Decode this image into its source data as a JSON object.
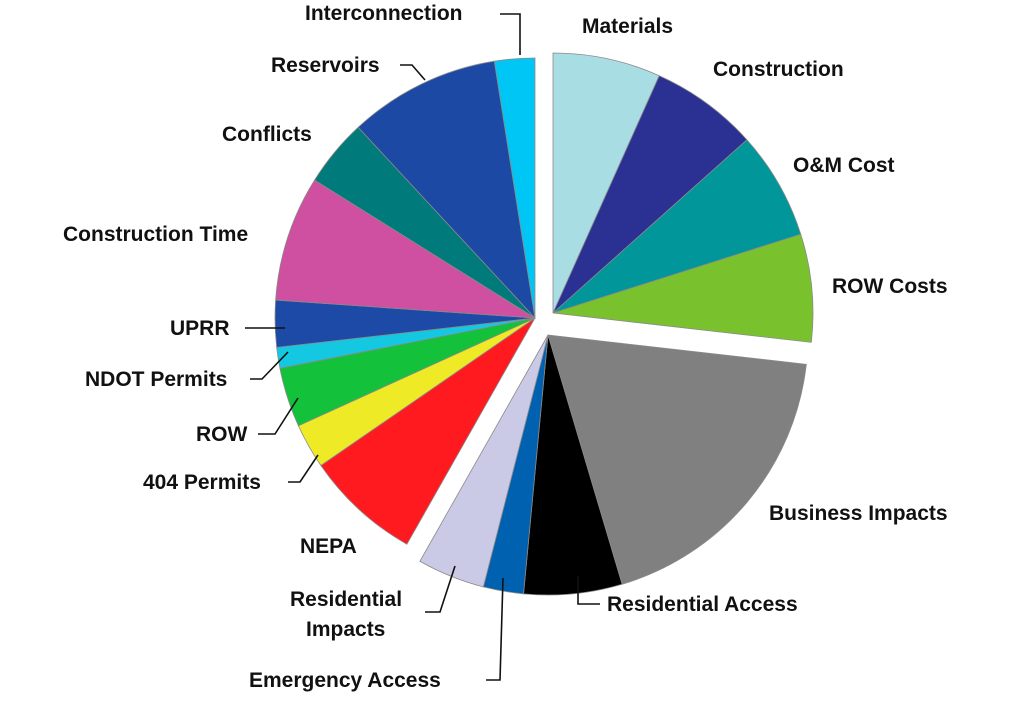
{
  "chart_data": {
    "type": "pie",
    "title": "",
    "unit": "percent (estimated)",
    "exploded_groups": [
      [
        "Materials",
        "Construction",
        "O&M Cost",
        "ROW Costs"
      ],
      [
        "Business Impacts",
        "Residential Access",
        "Emergency Access",
        "Residential Impacts"
      ],
      [
        "NEPA",
        "404 Permits",
        "ROW",
        "NDOT Permits",
        "UPRR",
        "Construction Time",
        "Conflicts",
        "Reservoirs",
        "Interconnection"
      ]
    ],
    "slices": [
      {
        "label": "Materials",
        "value": 6.7,
        "color": "#a8dde3",
        "group": 0
      },
      {
        "label": "Construction",
        "value": 6.7,
        "color": "#2b3192",
        "group": 0
      },
      {
        "label": "O&M Cost",
        "value": 6.7,
        "color": "#00969a",
        "group": 0
      },
      {
        "label": "ROW Costs",
        "value": 6.7,
        "color": "#79c22e",
        "group": 0
      },
      {
        "label": "Business Impacts",
        "value": 18.6,
        "color": "#808080",
        "group": 1
      },
      {
        "label": "Residential Access",
        "value": 6.1,
        "color": "#000000",
        "group": 1
      },
      {
        "label": "Emergency Access",
        "value": 2.5,
        "color": "#0061b0",
        "group": 1
      },
      {
        "label": "Residential Impacts",
        "value": 4.2,
        "color": "#cbcae6",
        "group": 1
      },
      {
        "label": "NEPA",
        "value": 7.2,
        "color": "#ff1a1f",
        "group": 2
      },
      {
        "label": "404 Permits",
        "value": 2.8,
        "color": "#eeea25",
        "group": 2
      },
      {
        "label": "ROW",
        "value": 3.7,
        "color": "#13c13a",
        "group": 2
      },
      {
        "label": "NDOT Permits",
        "value": 1.3,
        "color": "#13c8e0",
        "group": 2
      },
      {
        "label": "UPRR",
        "value": 2.9,
        "color": "#1c4aa6",
        "group": 2
      },
      {
        "label": "Construction Time",
        "value": 7.8,
        "color": "#cf4fa0",
        "group": 2
      },
      {
        "label": "Conflicts",
        "value": 4.2,
        "color": "#007a7a",
        "group": 2
      },
      {
        "label": "Reservoirs",
        "value": 9.4,
        "color": "#1b49a4",
        "group": 2
      },
      {
        "label": "Interconnection",
        "value": 2.5,
        "color": "#00c6f5",
        "group": 2
      }
    ],
    "labels": {
      "residential_impacts_line1": "Residential",
      "residential_impacts_line2": "Impacts"
    }
  }
}
